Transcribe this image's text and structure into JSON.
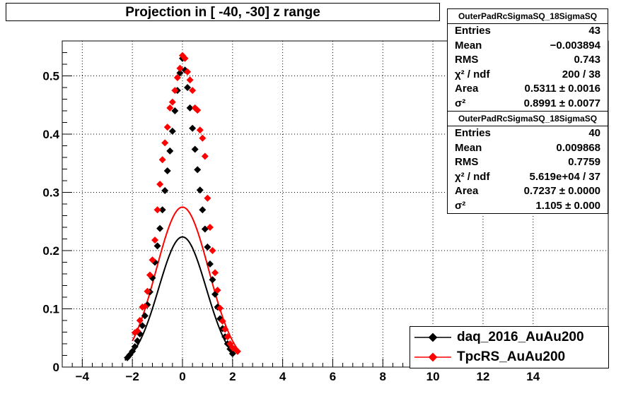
{
  "title": "Projection in [ -40, -30] z range",
  "stats": [
    {
      "name": "OuterPadRcSigmaSQ_18SigmaSQ",
      "rows": [
        {
          "label": "Entries",
          "value": "43"
        },
        {
          "label": "Mean",
          "value": "−0.003894"
        },
        {
          "label": "RMS",
          "value": "0.743"
        },
        {
          "label": "χ² / ndf",
          "value": "200 / 38"
        },
        {
          "label": "Area",
          "value": "0.5311 ± 0.0016"
        },
        {
          "label": "σ²",
          "value": "0.8991 ± 0.0077"
        }
      ]
    },
    {
      "name": "OuterPadRcSigmaSQ_18SigmaSQ",
      "rows": [
        {
          "label": "Entries",
          "value": "40"
        },
        {
          "label": "Mean",
          "value": "0.009868"
        },
        {
          "label": "RMS",
          "value": "0.7759"
        },
        {
          "label": "χ² / ndf",
          "value": "5.619e+04 / 37"
        },
        {
          "label": "Area",
          "value": "0.7237 ± 0.0000"
        },
        {
          "label": "σ²",
          "value": "1.105 ± 0.000"
        }
      ]
    }
  ],
  "legend": [
    {
      "name": "daq_2016_AuAu200",
      "color": "#000000"
    },
    {
      "name": "TpcRS_AuAu200",
      "color": "#ff0000"
    }
  ],
  "chart_data": {
    "type": "scatter",
    "title": "Projection in [ -40, -30] z range",
    "xlabel": "",
    "ylabel": "",
    "xlim": [
      -4.8,
      17
    ],
    "ylim": [
      0,
      0.56
    ],
    "x_ticks": [
      -4,
      -2,
      0,
      2,
      4,
      6,
      8,
      10,
      12,
      14
    ],
    "y_ticks": [
      0,
      0.1,
      0.2,
      0.3,
      0.4,
      0.5
    ],
    "grid": true,
    "legend_position": "bottom-right",
    "series": [
      {
        "name": "daq_2016_AuAu200",
        "color": "#000000",
        "x": [
          -2.2,
          -2.1,
          -2.0,
          -1.9,
          -1.8,
          -1.7,
          -1.6,
          -1.5,
          -1.4,
          -1.3,
          -1.2,
          -1.1,
          -1.0,
          -0.9,
          -0.8,
          -0.7,
          -0.6,
          -0.5,
          -0.4,
          -0.3,
          -0.2,
          -0.1,
          0.0,
          0.1,
          0.2,
          0.3,
          0.4,
          0.5,
          0.6,
          0.7,
          0.8,
          0.9,
          1.0,
          1.1,
          1.2,
          1.3,
          1.4,
          1.5,
          1.6,
          1.7,
          1.8,
          1.9,
          2.0
        ],
        "y": [
          0.016,
          0.021,
          0.027,
          0.035,
          0.045,
          0.057,
          0.071,
          0.088,
          0.107,
          0.129,
          0.153,
          0.18,
          0.208,
          0.238,
          0.27,
          0.303,
          0.337,
          0.371,
          0.405,
          0.44,
          0.475,
          0.505,
          0.53,
          0.51,
          0.48,
          0.445,
          0.41,
          0.374,
          0.339,
          0.304,
          0.27,
          0.237,
          0.206,
          0.177,
          0.15,
          0.125,
          0.103,
          0.083,
          0.066,
          0.052,
          0.04,
          0.031,
          0.023
        ]
      },
      {
        "name": "TpcRS_AuAu200",
        "color": "#ff0000",
        "x": [
          -1.9,
          -1.8,
          -1.7,
          -1.6,
          -1.5,
          -1.4,
          -1.3,
          -1.2,
          -1.1,
          -1.0,
          -0.9,
          -0.8,
          -0.7,
          -0.6,
          -0.5,
          -0.4,
          -0.3,
          -0.2,
          -0.1,
          0.0,
          0.1,
          0.2,
          0.3,
          0.4,
          0.5,
          0.6,
          0.7,
          0.8,
          0.9,
          1.0,
          1.1,
          1.2,
          1.3,
          1.4,
          1.5,
          1.6,
          1.7,
          1.8,
          1.9,
          2.0,
          2.1,
          2.2
        ],
        "y": [
          0.059,
          0.062,
          0.08,
          0.103,
          0.104,
          0.13,
          0.158,
          0.184,
          0.218,
          0.27,
          0.314,
          0.356,
          0.385,
          0.412,
          0.445,
          0.455,
          0.475,
          0.497,
          0.513,
          0.535,
          0.53,
          0.507,
          0.493,
          0.475,
          0.445,
          0.441,
          0.407,
          0.393,
          0.362,
          0.29,
          0.24,
          0.2,
          0.162,
          0.132,
          0.101,
          0.079,
          0.065,
          0.052,
          0.04,
          0.033,
          0.031,
          0.027
        ]
      }
    ],
    "fits": [
      {
        "name": "daq_2016_AuAu200",
        "color": "#000000",
        "area": 0.5311,
        "sigma2": 0.8991
      },
      {
        "name": "TpcRS_AuAu200",
        "color": "#ff0000",
        "area": 0.7237,
        "sigma2": 1.105
      }
    ]
  }
}
